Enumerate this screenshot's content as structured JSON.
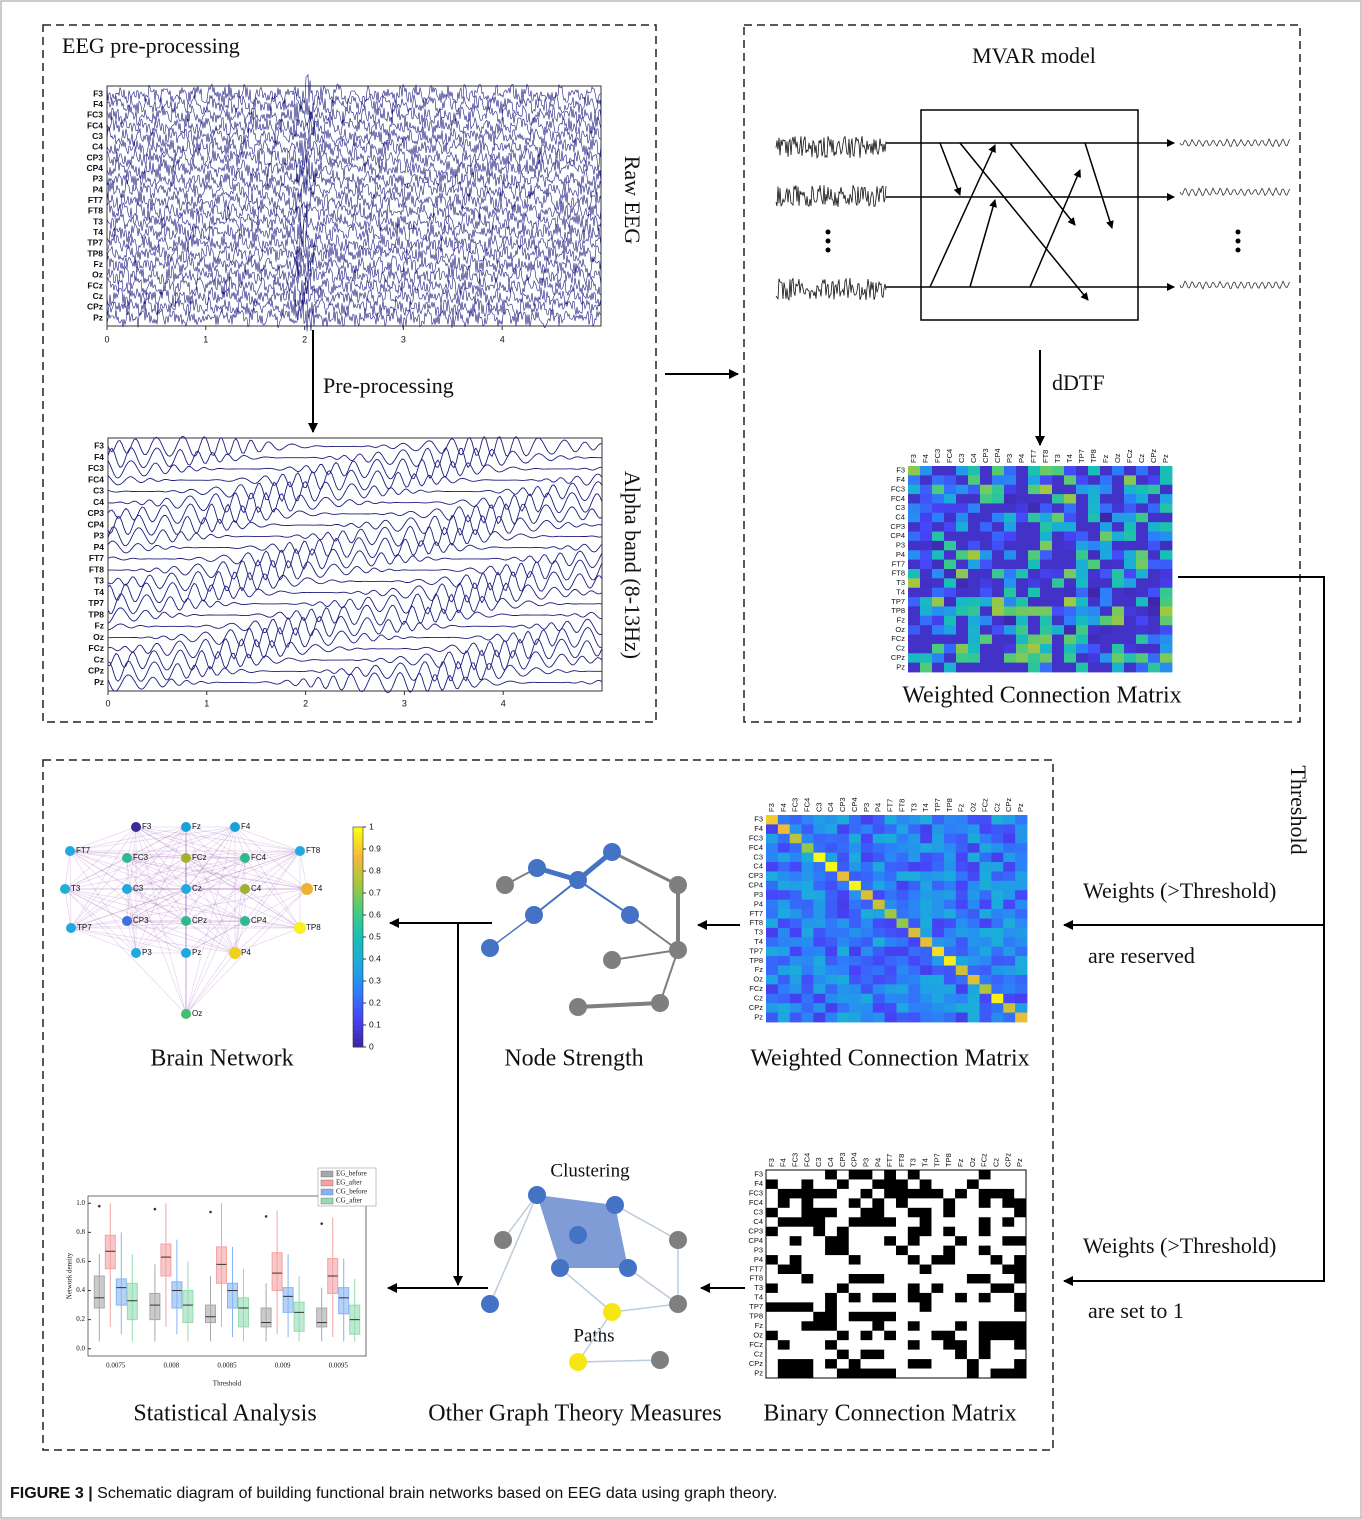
{
  "panels": {
    "preprocessing": {
      "title": "EEG pre-processing",
      "raw_label": "Raw EEG",
      "step": "Pre-processing",
      "alpha_label": "Alpha band (8-13Hz)",
      "xlim": [
        0,
        5
      ],
      "xticks": [
        0,
        1,
        2,
        3,
        4
      ]
    },
    "mvar": {
      "title": "MVAR model",
      "method": "dDTF",
      "matrix_label": "Weighted Connection Matrix"
    },
    "threshold": {
      "label": "Threshold",
      "reserved_line1": "Weights (>Threshold)",
      "reserved_line2": "are reserved",
      "binary_line1": "Weights (>Threshold)",
      "binary_line2": "are set to 1"
    },
    "weighted_label": "Weighted Connection Matrix",
    "binary_label": "Binary Connection Matrix",
    "node_strength": "Node Strength",
    "brain_network": {
      "title": "Brain Network",
      "colorbar_ticks": [
        0,
        0.1,
        0.2,
        0.3,
        0.4,
        0.5,
        0.6,
        0.7,
        0.8,
        0.9,
        1
      ]
    },
    "other_measures": {
      "title": "Other Graph Theory Measures",
      "clustering": "Clustering",
      "paths": "Paths"
    },
    "statistics": {
      "title": "Statistical Analysis",
      "ylabel": "Network density",
      "xlabel": "Threshold",
      "thresholds": [
        0.0075,
        0.008,
        0.0085,
        0.009,
        0.0095
      ],
      "ylim": [
        -0.05,
        1.05
      ],
      "yticks": [
        {
          "value": 0,
          "label": "0.0"
        },
        {
          "value": 0.2,
          "label": "0.2"
        },
        {
          "value": 0.4,
          "label": "0.4"
        },
        {
          "value": 0.6,
          "label": "0.6"
        },
        {
          "value": 0.8,
          "label": "0.8"
        },
        {
          "value": 1,
          "label": "1.0"
        }
      ],
      "series": [
        {
          "name": "EG_before",
          "color": "#a8a8a8",
          "boxes": [
            [
              0.05,
              0.28,
              0.35,
              0.5,
              0.65
            ],
            [
              0.05,
              0.2,
              0.3,
              0.38,
              0.58
            ],
            [
              0.05,
              0.18,
              0.22,
              0.3,
              0.5
            ],
            [
              0.05,
              0.15,
              0.18,
              0.28,
              0.45
            ],
            [
              0.05,
              0.15,
              0.18,
              0.28,
              0.42
            ]
          ],
          "outliers": [
            0.98,
            0.96,
            0.94,
            0.91,
            0.86
          ]
        },
        {
          "name": "EG_after",
          "color": "#f4a3a3",
          "boxes": [
            [
              0.15,
              0.55,
              0.67,
              0.78,
              1.0
            ],
            [
              0.15,
              0.5,
              0.63,
              0.72,
              1.0
            ],
            [
              0.15,
              0.45,
              0.58,
              0.7,
              1.0
            ],
            [
              0.1,
              0.4,
              0.52,
              0.66,
              0.95
            ],
            [
              0.08,
              0.38,
              0.5,
              0.62,
              0.9
            ]
          ]
        },
        {
          "name": "CG_before",
          "color": "#86b4f2",
          "boxes": [
            [
              0.1,
              0.3,
              0.42,
              0.48,
              0.8
            ],
            [
              0.1,
              0.28,
              0.4,
              0.46,
              0.75
            ],
            [
              0.08,
              0.28,
              0.4,
              0.45,
              0.7
            ],
            [
              0.08,
              0.25,
              0.36,
              0.42,
              0.65
            ],
            [
              0.05,
              0.24,
              0.35,
              0.42,
              0.62
            ]
          ]
        },
        {
          "name": "CG_after",
          "color": "#94dbb0",
          "boxes": [
            [
              0.05,
              0.2,
              0.33,
              0.45,
              0.65
            ],
            [
              0.05,
              0.18,
              0.3,
              0.4,
              0.6
            ],
            [
              0.05,
              0.15,
              0.28,
              0.35,
              0.55
            ],
            [
              0.05,
              0.12,
              0.25,
              0.32,
              0.5
            ],
            [
              0.05,
              0.1,
              0.2,
              0.3,
              0.48
            ]
          ]
        }
      ]
    }
  },
  "channels": [
    "F3",
    "F4",
    "FC3",
    "FC4",
    "C3",
    "C4",
    "CP3",
    "CP4",
    "P3",
    "P4",
    "FT7",
    "FT8",
    "T3",
    "T4",
    "TP7",
    "TP8",
    "Fz",
    "Oz",
    "FCz",
    "Cz",
    "CPz",
    "Pz"
  ],
  "caption": {
    "label": "FIGURE 3 |",
    "text": "Schematic diagram of building functional brain networks based on EEG data using graph theory."
  }
}
